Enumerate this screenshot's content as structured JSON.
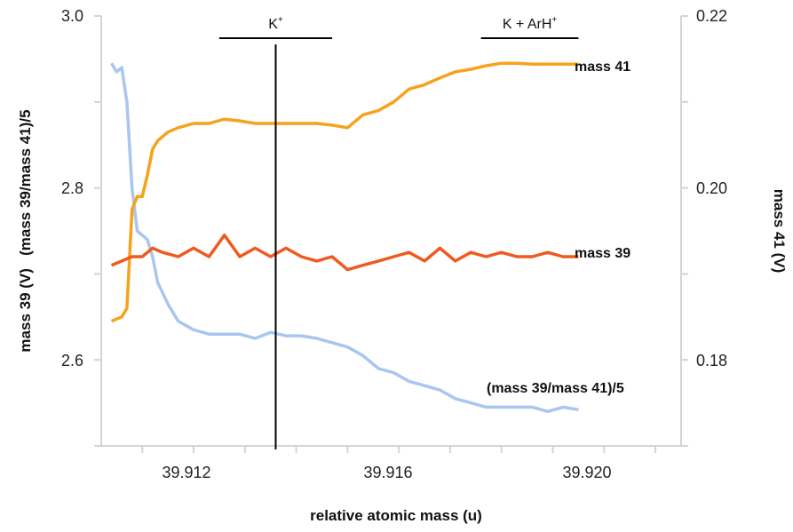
{
  "chart_data": {
    "type": "line",
    "xlabel": "relative atomic mass (u)",
    "ylabel_left": "mass 39 (V)   (mass 39/mass 41)/5",
    "ylabel_right": "mass 41 (V)",
    "xlim": [
      39.9102,
      39.9215
    ],
    "ylim_left": [
      2.5,
      3.0
    ],
    "ylim_right": [
      0.17,
      0.22
    ],
    "x_ticks": [
      "39.912",
      "39.916",
      "39.920"
    ],
    "y_left_ticks": [
      "3.0",
      "2.8",
      "2.6"
    ],
    "y_right_ticks": [
      "0.22",
      "0.20",
      "0.18"
    ],
    "grid": false,
    "colors": {
      "mass41": "#F7A21B",
      "mass39": "#EE5A1F",
      "ratio": "#A8C6EF",
      "axis": "#D4D4D4",
      "marker": "#000000"
    },
    "annotations": {
      "k_plus": {
        "text": "K",
        "sup": "+",
        "x_start": 39.9125,
        "x_end": 39.9147
      },
      "k_arh": {
        "text": "K + ArH",
        "sup": "+",
        "x_start": 39.9176,
        "x_end": 39.9195
      },
      "marker_x": 39.9136
    },
    "series": [
      {
        "name": "mass 41",
        "axis": "right",
        "x": [
          39.9104,
          39.9106,
          39.9107,
          39.9108,
          39.9109,
          39.911,
          39.9111,
          39.9112,
          39.9113,
          39.9115,
          39.9117,
          39.912,
          39.9123,
          39.9126,
          39.9129,
          39.9132,
          39.9135,
          39.9138,
          39.9141,
          39.9144,
          39.9147,
          39.915,
          39.9153,
          39.9156,
          39.9159,
          39.9162,
          39.9165,
          39.9168,
          39.9171,
          39.9174,
          39.9177,
          39.918,
          39.9183,
          39.9186,
          39.9189,
          39.9192,
          39.9195
        ],
        "values": [
          0.1845,
          0.185,
          0.186,
          0.1975,
          0.199,
          0.199,
          0.2015,
          0.2045,
          0.2055,
          0.2065,
          0.207,
          0.2075,
          0.2075,
          0.208,
          0.2078,
          0.2075,
          0.2075,
          0.2075,
          0.2075,
          0.2075,
          0.2073,
          0.207,
          0.2085,
          0.209,
          0.21,
          0.2115,
          0.212,
          0.2128,
          0.2135,
          0.2138,
          0.2142,
          0.2145,
          0.2145,
          0.2144,
          0.2144,
          0.2144,
          0.2144
        ]
      },
      {
        "name": "mass 39",
        "axis": "left",
        "x": [
          39.9104,
          39.9106,
          39.9108,
          39.911,
          39.9112,
          39.9114,
          39.9117,
          39.912,
          39.9123,
          39.9126,
          39.9129,
          39.9132,
          39.9135,
          39.9138,
          39.9141,
          39.9144,
          39.9147,
          39.915,
          39.9153,
          39.9156,
          39.9159,
          39.9162,
          39.9165,
          39.9168,
          39.9171,
          39.9174,
          39.9177,
          39.918,
          39.9183,
          39.9186,
          39.9189,
          39.9192,
          39.9195
        ],
        "values": [
          2.71,
          2.715,
          2.72,
          2.72,
          2.73,
          2.725,
          2.72,
          2.73,
          2.72,
          2.745,
          2.72,
          2.73,
          2.72,
          2.73,
          2.72,
          2.715,
          2.72,
          2.705,
          2.71,
          2.715,
          2.72,
          2.725,
          2.715,
          2.73,
          2.715,
          2.725,
          2.72,
          2.725,
          2.72,
          2.72,
          2.725,
          2.72,
          2.72
        ]
      },
      {
        "name": "(mass 39/mass 41)/5",
        "axis": "left",
        "x": [
          39.9104,
          39.9105,
          39.9106,
          39.9107,
          39.9108,
          39.9109,
          39.911,
          39.9111,
          39.9112,
          39.9113,
          39.9115,
          39.9117,
          39.912,
          39.9123,
          39.9126,
          39.9129,
          39.9132,
          39.9135,
          39.9138,
          39.9141,
          39.9144,
          39.9147,
          39.915,
          39.9153,
          39.9156,
          39.9159,
          39.9162,
          39.9165,
          39.9168,
          39.9171,
          39.9174,
          39.9177,
          39.918,
          39.9183,
          39.9186,
          39.9189,
          39.9192,
          39.9195
        ],
        "values": [
          2.945,
          2.935,
          2.94,
          2.9,
          2.8,
          2.75,
          2.745,
          2.74,
          2.72,
          2.69,
          2.665,
          2.645,
          2.635,
          2.63,
          2.63,
          2.63,
          2.625,
          2.632,
          2.628,
          2.628,
          2.625,
          2.62,
          2.615,
          2.605,
          2.59,
          2.585,
          2.575,
          2.57,
          2.565,
          2.555,
          2.55,
          2.545,
          2.545,
          2.545,
          2.545,
          2.54,
          2.545,
          2.542
        ]
      }
    ]
  }
}
